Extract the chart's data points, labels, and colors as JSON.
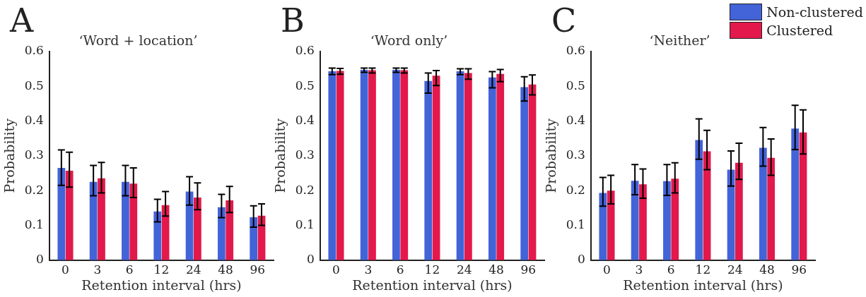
{
  "chart_data": [
    {
      "type": "bar",
      "title": "‘Word + location’",
      "xlabel": "Retention interval (hrs)",
      "ylabel": "Probability",
      "annotations": [
        "A"
      ],
      "categories": [
        "0",
        "3",
        "6",
        "12",
        "24",
        "48",
        "96"
      ],
      "ylim": [
        0,
        0.6
      ],
      "yticks": [
        0,
        0.1,
        0.2,
        0.3,
        0.4,
        0.5,
        0.6
      ],
      "grid": false,
      "legend": false,
      "series": [
        {
          "color": "#4363d8",
          "values": [
            0.265,
            0.225,
            0.225,
            0.14,
            0.197,
            0.152,
            0.123
          ],
          "errors": [
            [
              0.215,
              0.317
            ],
            [
              0.185,
              0.272
            ],
            [
              0.185,
              0.272
            ],
            [
              0.11,
              0.175
            ],
            [
              0.158,
              0.24
            ],
            [
              0.122,
              0.189
            ],
            [
              0.095,
              0.156
            ]
          ]
        },
        {
          "color": "#e3194b",
          "values": [
            0.257,
            0.235,
            0.22,
            0.158,
            0.18,
            0.172,
            0.128
          ],
          "errors": [
            [
              0.21,
              0.31
            ],
            [
              0.193,
              0.281
            ],
            [
              0.18,
              0.265
            ],
            [
              0.127,
              0.197
            ],
            [
              0.145,
              0.222
            ],
            [
              0.137,
              0.212
            ],
            [
              0.1,
              0.162
            ]
          ]
        }
      ]
    },
    {
      "type": "bar",
      "title": "‘Word only’",
      "xlabel": "Retention interval (hrs)",
      "ylabel": "Probability",
      "annotations": [
        "B"
      ],
      "categories": [
        "0",
        "3",
        "6",
        "12",
        "24",
        "48",
        "96"
      ],
      "ylim": [
        0,
        0.6
      ],
      "yticks": [
        0,
        0.1,
        0.2,
        0.3,
        0.4,
        0.5,
        0.6
      ],
      "grid": false,
      "legend": false,
      "series": [
        {
          "color": "#4363d8",
          "values": [
            0.543,
            0.547,
            0.547,
            0.515,
            0.543,
            0.525,
            0.497
          ],
          "errors": [
            [
              0.533,
              0.552
            ],
            [
              0.54,
              0.552
            ],
            [
              0.54,
              0.552
            ],
            [
              0.48,
              0.538
            ],
            [
              0.533,
              0.55
            ],
            [
              0.495,
              0.542
            ],
            [
              0.457,
              0.527
            ]
          ]
        },
        {
          "color": "#e3194b",
          "values": [
            0.544,
            0.546,
            0.546,
            0.53,
            0.538,
            0.535,
            0.505
          ],
          "errors": [
            [
              0.534,
              0.551
            ],
            [
              0.538,
              0.552
            ],
            [
              0.538,
              0.552
            ],
            [
              0.502,
              0.545
            ],
            [
              0.52,
              0.55
            ],
            [
              0.513,
              0.548
            ],
            [
              0.475,
              0.532
            ]
          ]
        }
      ]
    },
    {
      "type": "bar",
      "title": "‘Neither’",
      "xlabel": "Retention interval (hrs)",
      "ylabel": "Probability",
      "annotations": [
        "C"
      ],
      "categories": [
        "0",
        "3",
        "6",
        "12",
        "24",
        "48",
        "96"
      ],
      "ylim": [
        0,
        0.6
      ],
      "yticks": [
        0,
        0.1,
        0.2,
        0.3,
        0.4,
        0.5,
        0.6
      ],
      "grid": false,
      "legend": "top right",
      "series": [
        {
          "name": "Non-clustered",
          "color": "#4363d8",
          "values": [
            0.193,
            0.228,
            0.227,
            0.345,
            0.26,
            0.323,
            0.378
          ],
          "errors": [
            [
              0.155,
              0.238
            ],
            [
              0.188,
              0.275
            ],
            [
              0.186,
              0.275
            ],
            [
              0.29,
              0.406
            ],
            [
              0.213,
              0.314
            ],
            [
              0.27,
              0.381
            ],
            [
              0.318,
              0.445
            ]
          ]
        },
        {
          "name": "Clustered",
          "color": "#e3194b",
          "values": [
            0.2,
            0.218,
            0.234,
            0.313,
            0.28,
            0.294,
            0.367
          ],
          "errors": [
            [
              0.162,
              0.244
            ],
            [
              0.178,
              0.262
            ],
            [
              0.193,
              0.28
            ],
            [
              0.26,
              0.373
            ],
            [
              0.232,
              0.336
            ],
            [
              0.244,
              0.348
            ],
            [
              0.305,
              0.432
            ]
          ]
        }
      ]
    }
  ]
}
